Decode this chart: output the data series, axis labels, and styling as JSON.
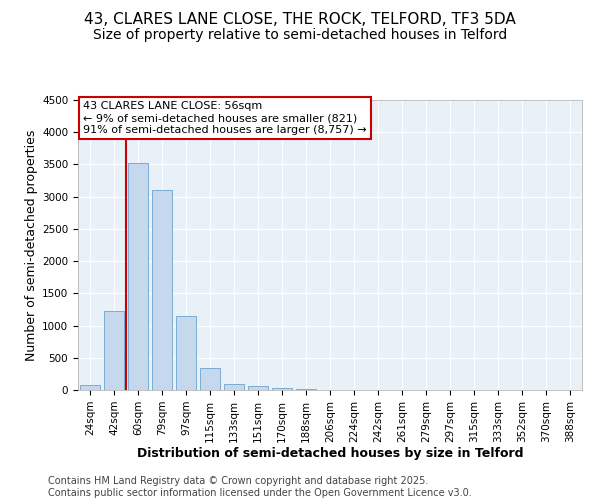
{
  "title_line1": "43, CLARES LANE CLOSE, THE ROCK, TELFORD, TF3 5DA",
  "title_line2": "Size of property relative to semi-detached houses in Telford",
  "xlabel": "Distribution of semi-detached houses by size in Telford",
  "ylabel": "Number of semi-detached properties",
  "categories": [
    "24sqm",
    "42sqm",
    "60sqm",
    "79sqm",
    "97sqm",
    "115sqm",
    "133sqm",
    "151sqm",
    "170sqm",
    "188sqm",
    "206sqm",
    "224sqm",
    "242sqm",
    "261sqm",
    "279sqm",
    "297sqm",
    "315sqm",
    "333sqm",
    "352sqm",
    "370sqm",
    "388sqm"
  ],
  "values": [
    75,
    1220,
    3520,
    3110,
    1150,
    340,
    100,
    60,
    35,
    10,
    5,
    0,
    0,
    0,
    0,
    0,
    0,
    0,
    0,
    0,
    0
  ],
  "bar_color": "#c5d8ee",
  "bar_edge_color": "#7aacd4",
  "vline_color": "#cc0000",
  "vline_x": 1.5,
  "annotation_text": "43 CLARES LANE CLOSE: 56sqm\n← 9% of semi-detached houses are smaller (821)\n91% of semi-detached houses are larger (8,757) →",
  "annotation_box_color": "#ffffff",
  "annotation_box_edge": "#cc0000",
  "ylim": [
    0,
    4500
  ],
  "yticks": [
    0,
    500,
    1000,
    1500,
    2000,
    2500,
    3000,
    3500,
    4000,
    4500
  ],
  "background_color": "#ffffff",
  "plot_bg_color": "#e8f0f8",
  "footer_text": "Contains HM Land Registry data © Crown copyright and database right 2025.\nContains public sector information licensed under the Open Government Licence v3.0.",
  "title_fontsize": 11,
  "subtitle_fontsize": 10,
  "label_fontsize": 9,
  "tick_fontsize": 7.5,
  "footer_fontsize": 7,
  "annot_fontsize": 8
}
